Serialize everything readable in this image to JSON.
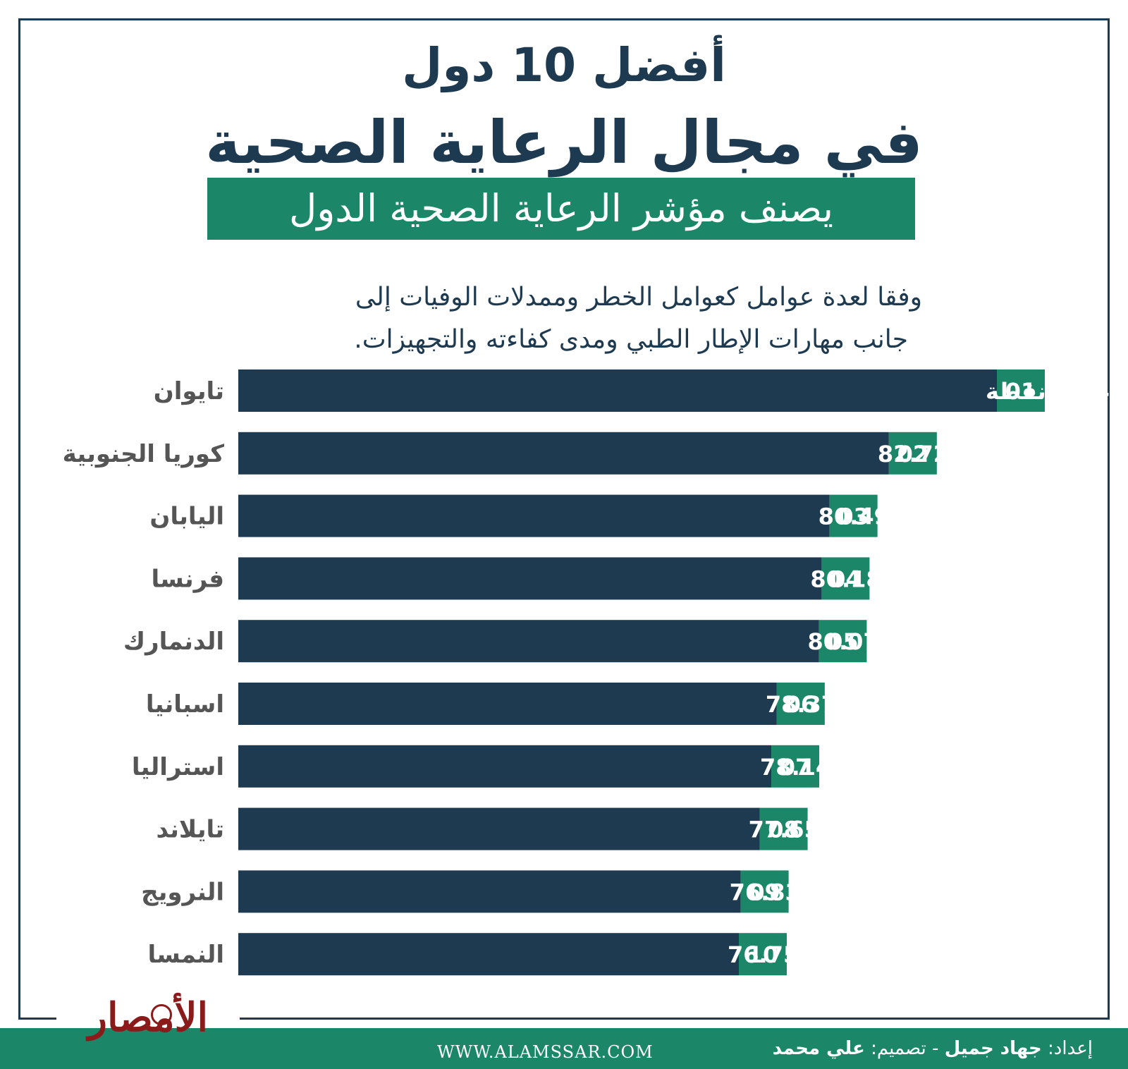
{
  "header": {
    "title_line1": "أفضل 10 دول",
    "title_line2": "في مجال الرعاية الصحية",
    "subtitle": "يصنف مؤشر الرعاية الصحية الدول",
    "description_line1": "وفقا لعدة عوامل  كعوامل الخطر وممدلات الوفيات إلى",
    "description_line2": "جانب مهارات الإطار الطبي ومدى كفاءته والتجهيزات."
  },
  "colors": {
    "bar": "#1e3a50",
    "rank_badge": "#1b8768",
    "label_text": "#555555",
    "value_text": "#ffffff",
    "footer": "#1b8768",
    "logo": "#8b1a1a"
  },
  "chart_data": {
    "type": "bar",
    "orientation": "horizontal",
    "categories": [
      "تايوان",
      "كوريا الجنوبية",
      "اليابان",
      "فرنسا",
      "الدنمارك",
      "اسبانيا",
      "استراليا",
      "تايلاند",
      "النرويج",
      "النمسا"
    ],
    "ranks": [
      "01",
      "02",
      "03",
      "04",
      "05",
      "06",
      "07",
      "08",
      "09",
      "10"
    ],
    "values": [
      86.43,
      82.72,
      80.49,
      80.18,
      80.07,
      78.37,
      78.14,
      77.65,
      76.83,
      76.75
    ],
    "value_labels": [
      "86.43 نقطة",
      "82.72",
      "80.49",
      "80.18",
      "80.07",
      "78.37",
      "78.14",
      "77.65",
      "76.83",
      "76.75"
    ],
    "title": "",
    "xlabel": "",
    "ylabel": "",
    "grid": false,
    "legend": "none"
  },
  "footer": {
    "url": "WWW.ALAMSSAR.COM",
    "prep_label": "إعداد:",
    "prep_name": "جهاد جميل",
    "separator": "-",
    "design_label": "تصميم:",
    "design_name": "علي محمد"
  },
  "logo": {
    "text": "الأمصار"
  }
}
